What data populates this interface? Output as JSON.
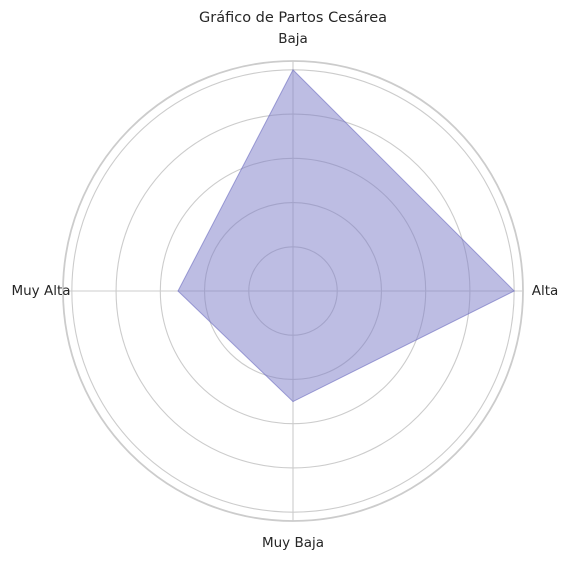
{
  "chart_data": {
    "type": "radar",
    "title": "Gráfico de Partos Cesárea",
    "categories": [
      "Alta",
      "Baja",
      "Muy Alta",
      "Muy Baja"
    ],
    "series": [
      {
        "values": [
          5.0,
          5.0,
          2.6,
          2.5
        ]
      }
    ],
    "rlim": [
      0,
      5.2
    ],
    "rticks": [
      1,
      2,
      3,
      4,
      5
    ],
    "grid": true,
    "colors": {
      "fill": "#7b7bc8",
      "fill_opacity": 0.5,
      "stroke": "#6a6ac0",
      "grid": "#cccccc",
      "text": "#262626"
    }
  }
}
